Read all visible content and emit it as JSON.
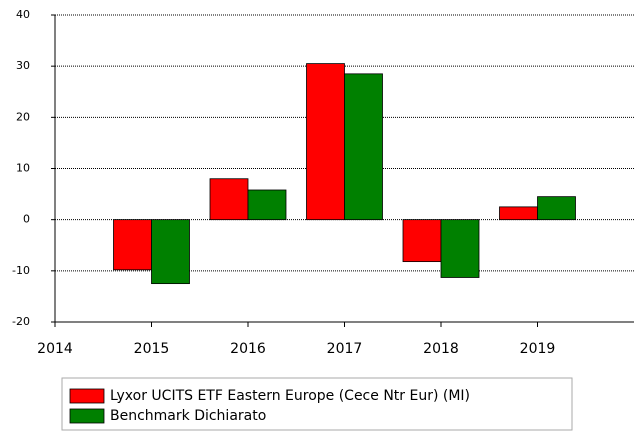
{
  "chart_data": {
    "type": "bar",
    "x": [
      2015,
      2016,
      2017,
      2018,
      2019
    ],
    "series": [
      {
        "name": "Lyxor UCITS ETF Eastern Europe (Cece Ntr Eur) (MI)",
        "color": "#ff0000",
        "values": [
          -9.8,
          8,
          30.5,
          -8.2,
          2.5
        ]
      },
      {
        "name": "Benchmark Dichiarato",
        "color": "#008000",
        "values": [
          -12.5,
          5.8,
          28.5,
          -11.3,
          4.5
        ]
      }
    ],
    "xlim": [
      2014,
      2020
    ],
    "xticks": [
      2014,
      2015,
      2016,
      2017,
      2018,
      2019
    ],
    "ylim": [
      -20,
      40
    ],
    "yticks": [
      -20,
      -10,
      0,
      10,
      20,
      30,
      40
    ],
    "grid": true,
    "legend": "bottom"
  }
}
